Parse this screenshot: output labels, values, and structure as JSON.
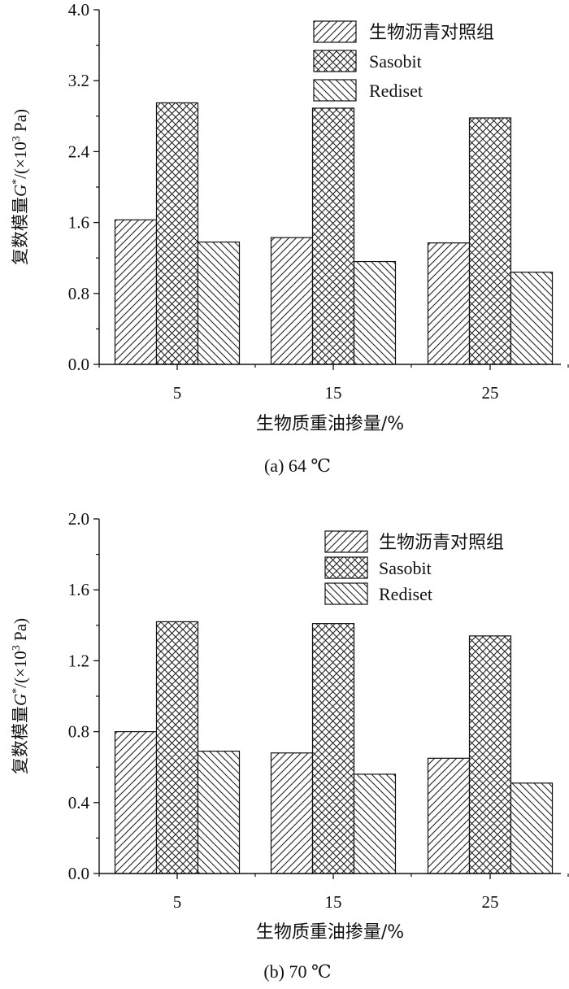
{
  "chart_data": [
    {
      "type": "bar",
      "caption": "(a) 64 ℃",
      "xlabel": "生物质重油掺量/%",
      "ylabel": "复数模量G*/(×10³ Pa)",
      "ylabel_parts": {
        "main": "复数模量",
        "var": "G",
        "sup1": "*",
        "unit_open": "/(×10",
        "sup2": "3",
        "unit_close": " Pa)"
      },
      "categories": [
        "5",
        "15",
        "25"
      ],
      "ylim": [
        0,
        4.0
      ],
      "yticks": [
        "0.0",
        "0.8",
        "1.6",
        "2.4",
        "3.2",
        "4.0"
      ],
      "legend_position": "top-right",
      "grid": false,
      "series": [
        {
          "name": "生物沥青对照组",
          "values": [
            1.63,
            1.43,
            1.37
          ],
          "pattern": "diag-right"
        },
        {
          "name": "Sasobit",
          "values": [
            2.95,
            2.89,
            2.78
          ],
          "pattern": "crosshatch"
        },
        {
          "name": "Rediset",
          "values": [
            1.38,
            1.16,
            1.04
          ],
          "pattern": "diag-left"
        }
      ]
    },
    {
      "type": "bar",
      "caption": "(b) 70 ℃",
      "xlabel": "生物质重油掺量/%",
      "ylabel": "复数模量G*/(×10³ Pa)",
      "ylabel_parts": {
        "main": "复数模量",
        "var": "G",
        "sup1": "*",
        "unit_open": "/(×10",
        "sup2": "3",
        "unit_close": " Pa)"
      },
      "categories": [
        "5",
        "15",
        "25"
      ],
      "ylim": [
        0,
        2.0
      ],
      "yticks": [
        "0.0",
        "0.4",
        "0.8",
        "1.2",
        "1.6",
        "2.0"
      ],
      "legend_position": "top-right",
      "grid": false,
      "series": [
        {
          "name": "生物沥青对照组",
          "values": [
            0.8,
            0.68,
            0.65
          ],
          "pattern": "diag-right"
        },
        {
          "name": "Sasobit",
          "values": [
            1.42,
            1.41,
            1.34
          ],
          "pattern": "crosshatch"
        },
        {
          "name": "Rediset",
          "values": [
            0.69,
            0.56,
            0.51
          ],
          "pattern": "diag-left"
        }
      ]
    }
  ]
}
